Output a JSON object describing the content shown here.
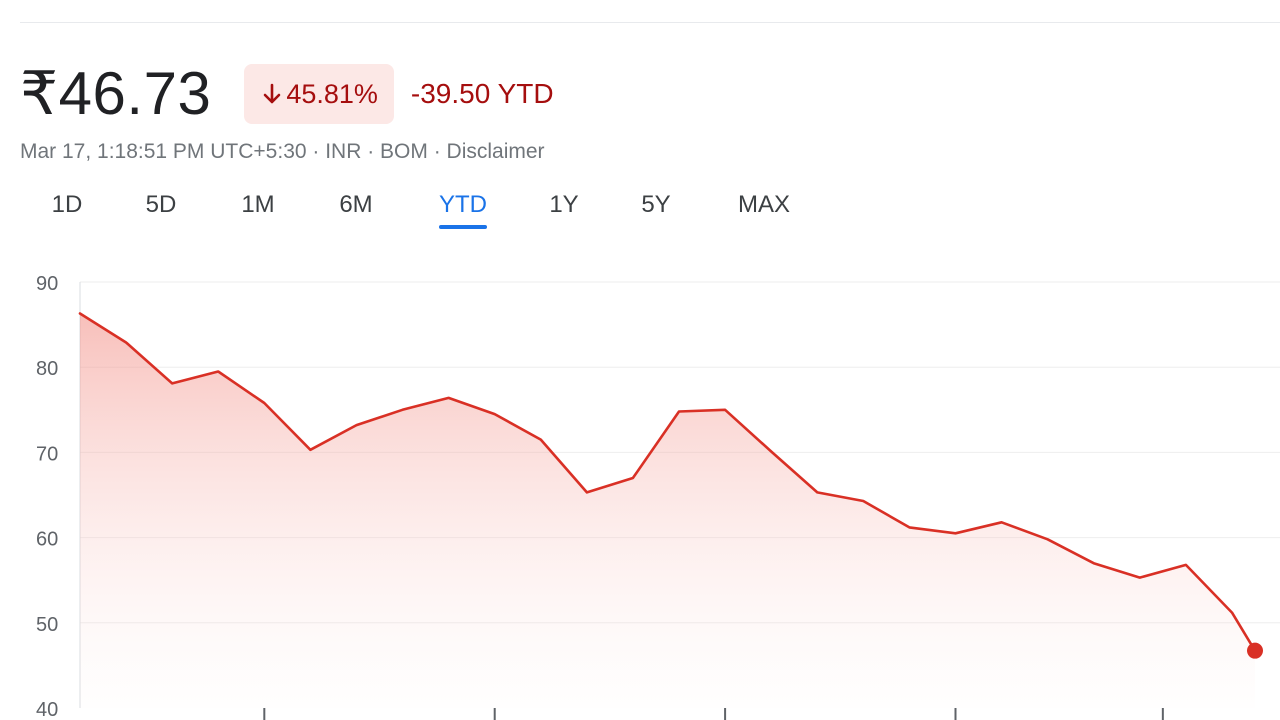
{
  "quote": {
    "price": "₹46.73",
    "change_percent": "45.81%",
    "change_ytd": "-39.50 YTD",
    "meta": "Mar 17, 1:18:51 PM UTC+5:30 · INR · BOM · Disclaimer"
  },
  "tabs": [
    {
      "label": "1D",
      "active": false
    },
    {
      "label": "5D",
      "active": false
    },
    {
      "label": "1M",
      "active": false
    },
    {
      "label": "6M",
      "active": false
    },
    {
      "label": "YTD",
      "active": true
    },
    {
      "label": "1Y",
      "active": false
    },
    {
      "label": "5Y",
      "active": false
    },
    {
      "label": "MAX",
      "active": false
    }
  ],
  "colors": {
    "line": "#d93025",
    "negative_text": "#a50e0e",
    "badge_bg": "#fce8e6",
    "active_tab": "#1a73e8"
  },
  "chart_data": {
    "type": "area",
    "ylim": [
      40,
      90
    ],
    "yticks": [
      90,
      80,
      70,
      60,
      50,
      40
    ],
    "grid": true,
    "xticks": [
      8,
      18,
      28,
      38,
      47
    ],
    "x": [
      0,
      2,
      4,
      6,
      8,
      10,
      12,
      14,
      16,
      18,
      20,
      22,
      24,
      26,
      28,
      30,
      32,
      34,
      36,
      38,
      40,
      42,
      44,
      46,
      48,
      50,
      51
    ],
    "values": [
      86.3,
      82.9,
      78.1,
      79.5,
      75.8,
      70.3,
      73.2,
      75.0,
      76.4,
      74.5,
      71.5,
      65.3,
      67.0,
      74.8,
      75.0,
      70.1,
      65.3,
      64.3,
      61.2,
      60.5,
      61.8,
      59.8,
      57.0,
      55.3,
      56.8,
      51.2,
      46.73
    ]
  }
}
